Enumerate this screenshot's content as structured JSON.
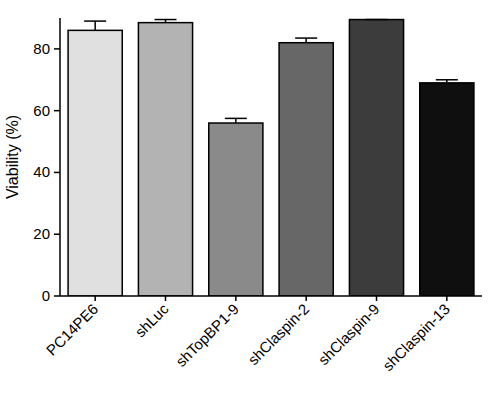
{
  "chart_data": {
    "type": "bar",
    "y_label": "Viability (%)",
    "categories": [
      "PC14PE6",
      "shLuc",
      "shTopBP1-9",
      "shClaspin-2",
      "shClaspin-9",
      "shClaspin-13"
    ],
    "values": [
      86,
      88.5,
      56,
      82,
      89.5,
      69
    ],
    "errors": [
      3,
      1,
      1.5,
      1.5,
      0,
      1
    ],
    "colors": [
      "#e0e0e0",
      "#b3b3b3",
      "#8a8a8a",
      "#676767",
      "#3c3c3c",
      "#0f0f0f"
    ],
    "ylim": [
      0,
      90
    ],
    "yticks": [
      0,
      20,
      40,
      60,
      80
    ],
    "grid": false
  }
}
